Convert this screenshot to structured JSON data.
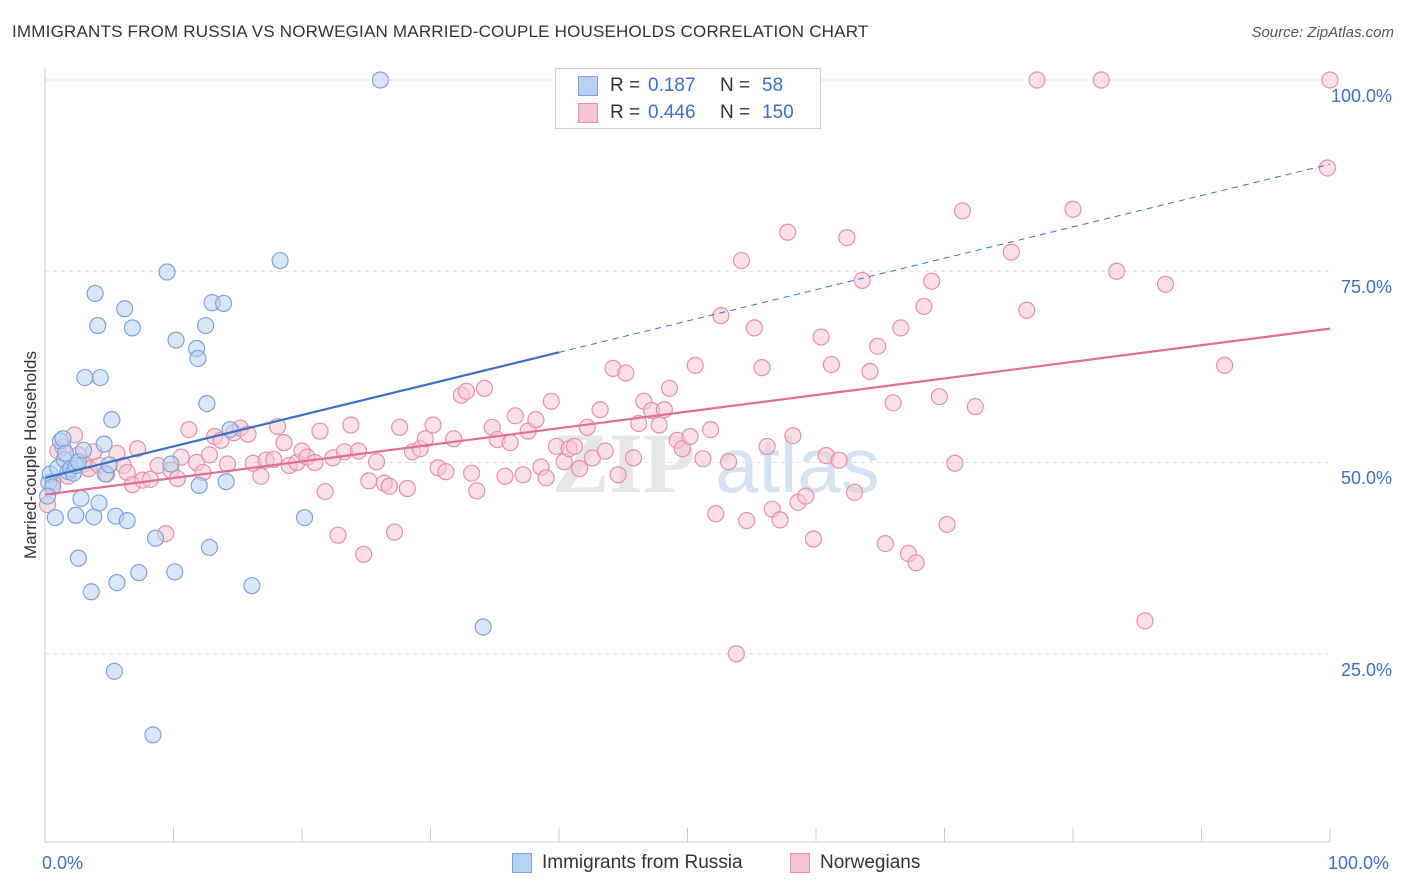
{
  "header": {
    "title": "IMMIGRANTS FROM RUSSIA VS NORWEGIAN MARRIED-COUPLE HOUSEHOLDS CORRELATION CHART",
    "source": "Source: ZipAtlas.com"
  },
  "legend": {
    "rows": [
      {
        "r_label": "R =",
        "r_value": "0.187",
        "n_label": "N =",
        "n_value": "58"
      },
      {
        "r_label": "R =",
        "r_value": "0.446",
        "n_label": "N =",
        "n_value": "150"
      }
    ]
  },
  "watermark": {
    "zip": "ZIP",
    "atlas": "atlas"
  },
  "colors": {
    "blue_fill": "#b8d1f3",
    "blue_stroke": "#7ba3d9",
    "blue_line": "#3a6fc4",
    "pink_fill": "#f6c4d2",
    "pink_stroke": "#e58fab",
    "pink_line": "#e06e97",
    "axis_text": "#3a6fc4",
    "grid": "#dddddd"
  },
  "chart_data": {
    "type": "scatter",
    "title": "IMMIGRANTS FROM RUSSIA VS NORWEGIAN MARRIED-COUPLE HOUSEHOLDS CORRELATION CHART",
    "xlabel": "",
    "ylabel": "Married-couple Households",
    "xlim": [
      0,
      100
    ],
    "ylim": [
      5,
      102
    ],
    "x_tick_labels": [
      "0.0%",
      "100.0%"
    ],
    "y_ticks": [
      25,
      50,
      75,
      100
    ],
    "y_tick_labels": [
      "25.0%",
      "50.0%",
      "75.0%",
      "100.0%"
    ],
    "grid": true,
    "legend_position": "bottom-center",
    "series": [
      {
        "name": "Immigrants from Russia",
        "color": "#7ba3d9",
        "R": 0.187,
        "N": 58,
        "trend_solid": [
          [
            0,
            48.0
          ],
          [
            40,
            64.4
          ]
        ],
        "trend_dashed": [
          [
            40,
            64.4
          ],
          [
            100,
            89.0
          ]
        ],
        "points": [
          [
            0.3,
            47.4
          ],
          [
            0.4,
            48.5
          ],
          [
            0.6,
            46.8
          ],
          [
            0.8,
            42.8
          ],
          [
            1.0,
            49.3
          ],
          [
            1.2,
            52.8
          ],
          [
            1.4,
            53.1
          ],
          [
            1.5,
            50.4
          ],
          [
            1.6,
            51.2
          ],
          [
            1.8,
            48.8
          ],
          [
            2.0,
            49.2
          ],
          [
            2.2,
            48.6
          ],
          [
            2.4,
            49.6
          ],
          [
            2.6,
            50.1
          ],
          [
            2.8,
            45.3
          ],
          [
            2.4,
            43.1
          ],
          [
            2.6,
            37.5
          ],
          [
            3.0,
            51.6
          ],
          [
            3.6,
            33.1
          ],
          [
            3.8,
            42.9
          ],
          [
            3.9,
            72.1
          ],
          [
            4.1,
            67.9
          ],
          [
            4.2,
            44.7
          ],
          [
            4.3,
            61.1
          ],
          [
            3.1,
            61.1
          ],
          [
            4.6,
            52.4
          ],
          [
            4.7,
            48.5
          ],
          [
            5.0,
            49.7
          ],
          [
            5.2,
            55.6
          ],
          [
            5.5,
            43.0
          ],
          [
            5.6,
            34.3
          ],
          [
            5.4,
            22.7
          ],
          [
            6.2,
            70.1
          ],
          [
            6.4,
            42.4
          ],
          [
            6.8,
            67.6
          ],
          [
            7.3,
            35.6
          ],
          [
            8.4,
            14.4
          ],
          [
            8.6,
            40.1
          ],
          [
            9.5,
            74.9
          ],
          [
            9.8,
            49.8
          ],
          [
            10.1,
            35.7
          ],
          [
            10.2,
            66.0
          ],
          [
            11.8,
            64.9
          ],
          [
            11.9,
            63.6
          ],
          [
            12.0,
            47.0
          ],
          [
            12.5,
            67.9
          ],
          [
            12.6,
            57.7
          ],
          [
            12.8,
            38.9
          ],
          [
            13.0,
            70.9
          ],
          [
            13.9,
            70.8
          ],
          [
            14.1,
            47.5
          ],
          [
            14.4,
            54.3
          ],
          [
            16.1,
            33.9
          ],
          [
            18.3,
            76.4
          ],
          [
            20.2,
            42.8
          ],
          [
            26.1,
            100.0
          ],
          [
            34.1,
            28.5
          ],
          [
            0.2,
            45.6
          ]
        ]
      },
      {
        "name": "Norwegians",
        "color": "#e58fab",
        "R": 0.446,
        "N": 150,
        "trend_solid": [
          [
            0,
            45.8
          ],
          [
            100,
            67.5
          ]
        ],
        "points": [
          [
            0.2,
            44.5
          ],
          [
            0.6,
            47.3
          ],
          [
            1.0,
            51.5
          ],
          [
            1.4,
            52.0
          ],
          [
            1.8,
            48.2
          ],
          [
            2.3,
            53.6
          ],
          [
            2.6,
            51.0
          ],
          [
            3.0,
            49.8
          ],
          [
            3.4,
            49.2
          ],
          [
            3.8,
            51.4
          ],
          [
            4.2,
            49.6
          ],
          [
            4.8,
            48.5
          ],
          [
            5.6,
            51.2
          ],
          [
            6.1,
            49.6
          ],
          [
            6.4,
            48.7
          ],
          [
            6.8,
            47.1
          ],
          [
            7.2,
            51.8
          ],
          [
            7.6,
            47.7
          ],
          [
            8.2,
            47.8
          ],
          [
            8.8,
            49.6
          ],
          [
            9.4,
            40.7
          ],
          [
            9.8,
            49.0
          ],
          [
            10.3,
            47.9
          ],
          [
            10.6,
            50.7
          ],
          [
            11.2,
            54.3
          ],
          [
            11.8,
            50.0
          ],
          [
            12.3,
            48.7
          ],
          [
            12.8,
            51.0
          ],
          [
            13.2,
            53.4
          ],
          [
            13.7,
            52.9
          ],
          [
            14.2,
            49.8
          ],
          [
            14.7,
            53.9
          ],
          [
            15.2,
            54.5
          ],
          [
            15.8,
            53.7
          ],
          [
            16.2,
            49.9
          ],
          [
            16.8,
            48.2
          ],
          [
            17.2,
            50.3
          ],
          [
            17.8,
            50.4
          ],
          [
            18.1,
            54.7
          ],
          [
            18.6,
            52.6
          ],
          [
            19.0,
            49.6
          ],
          [
            19.6,
            50.0
          ],
          [
            20.0,
            51.5
          ],
          [
            20.4,
            50.7
          ],
          [
            21.0,
            50.0
          ],
          [
            21.4,
            54.1
          ],
          [
            21.8,
            46.2
          ],
          [
            22.4,
            50.6
          ],
          [
            22.8,
            40.5
          ],
          [
            23.3,
            51.4
          ],
          [
            23.8,
            54.9
          ],
          [
            24.4,
            51.5
          ],
          [
            24.8,
            38.0
          ],
          [
            25.2,
            47.6
          ],
          [
            25.8,
            50.1
          ],
          [
            26.4,
            47.3
          ],
          [
            26.8,
            46.9
          ],
          [
            27.2,
            40.9
          ],
          [
            27.6,
            54.6
          ],
          [
            28.2,
            46.6
          ],
          [
            28.6,
            51.4
          ],
          [
            29.2,
            51.8
          ],
          [
            29.6,
            53.1
          ],
          [
            30.2,
            54.9
          ],
          [
            30.6,
            49.3
          ],
          [
            31.2,
            48.8
          ],
          [
            31.8,
            53.1
          ],
          [
            32.4,
            58.8
          ],
          [
            32.8,
            59.3
          ],
          [
            33.2,
            48.6
          ],
          [
            33.6,
            46.3
          ],
          [
            34.2,
            59.7
          ],
          [
            34.8,
            54.6
          ],
          [
            35.2,
            53.0
          ],
          [
            35.8,
            48.2
          ],
          [
            36.2,
            52.6
          ],
          [
            36.6,
            56.1
          ],
          [
            37.2,
            48.4
          ],
          [
            37.6,
            54.1
          ],
          [
            38.2,
            55.6
          ],
          [
            38.6,
            49.4
          ],
          [
            39.0,
            48.0
          ],
          [
            39.4,
            58.0
          ],
          [
            39.8,
            52.1
          ],
          [
            40.4,
            50.1
          ],
          [
            40.8,
            51.8
          ],
          [
            41.2,
            52.1
          ],
          [
            41.6,
            49.2
          ],
          [
            42.2,
            54.6
          ],
          [
            42.6,
            50.6
          ],
          [
            43.2,
            56.9
          ],
          [
            43.6,
            51.5
          ],
          [
            44.2,
            62.3
          ],
          [
            44.6,
            48.4
          ],
          [
            45.2,
            61.7
          ],
          [
            45.8,
            50.6
          ],
          [
            46.2,
            55.1
          ],
          [
            46.6,
            58.0
          ],
          [
            47.2,
            56.8
          ],
          [
            47.8,
            54.9
          ],
          [
            48.2,
            56.9
          ],
          [
            48.6,
            59.7
          ],
          [
            49.2,
            52.9
          ],
          [
            49.6,
            51.8
          ],
          [
            50.2,
            53.4
          ],
          [
            50.6,
            62.7
          ],
          [
            51.2,
            50.5
          ],
          [
            51.8,
            54.3
          ],
          [
            52.2,
            43.3
          ],
          [
            52.6,
            69.2
          ],
          [
            53.2,
            50.1
          ],
          [
            53.8,
            25.0
          ],
          [
            54.2,
            76.4
          ],
          [
            54.6,
            42.4
          ],
          [
            55.2,
            67.6
          ],
          [
            55.8,
            62.4
          ],
          [
            56.2,
            52.1
          ],
          [
            56.6,
            43.9
          ],
          [
            57.2,
            42.5
          ],
          [
            57.8,
            80.1
          ],
          [
            58.2,
            53.5
          ],
          [
            58.6,
            44.8
          ],
          [
            59.2,
            45.6
          ],
          [
            59.8,
            40.0
          ],
          [
            60.4,
            66.4
          ],
          [
            60.8,
            50.9
          ],
          [
            61.2,
            62.8
          ],
          [
            61.8,
            50.3
          ],
          [
            62.4,
            79.4
          ],
          [
            63.0,
            46.1
          ],
          [
            63.6,
            73.8
          ],
          [
            64.2,
            61.9
          ],
          [
            64.8,
            65.2
          ],
          [
            65.4,
            39.4
          ],
          [
            66.0,
            57.8
          ],
          [
            66.6,
            67.6
          ],
          [
            67.2,
            38.1
          ],
          [
            67.8,
            36.9
          ],
          [
            68.4,
            70.4
          ],
          [
            69.0,
            73.7
          ],
          [
            69.6,
            58.6
          ],
          [
            70.2,
            41.9
          ],
          [
            70.8,
            49.9
          ],
          [
            71.4,
            82.9
          ],
          [
            72.4,
            57.3
          ],
          [
            75.2,
            77.5
          ],
          [
            76.4,
            69.9
          ],
          [
            77.2,
            100.0
          ],
          [
            80.0,
            83.1
          ],
          [
            82.2,
            100.0
          ],
          [
            83.4,
            75.0
          ],
          [
            85.6,
            29.3
          ],
          [
            87.2,
            73.3
          ],
          [
            91.8,
            62.7
          ],
          [
            100.0,
            100.0
          ],
          [
            99.8,
            88.5
          ]
        ]
      }
    ]
  },
  "bottom_legend": {
    "items": [
      "Immigrants from Russia",
      "Norwegians"
    ]
  }
}
